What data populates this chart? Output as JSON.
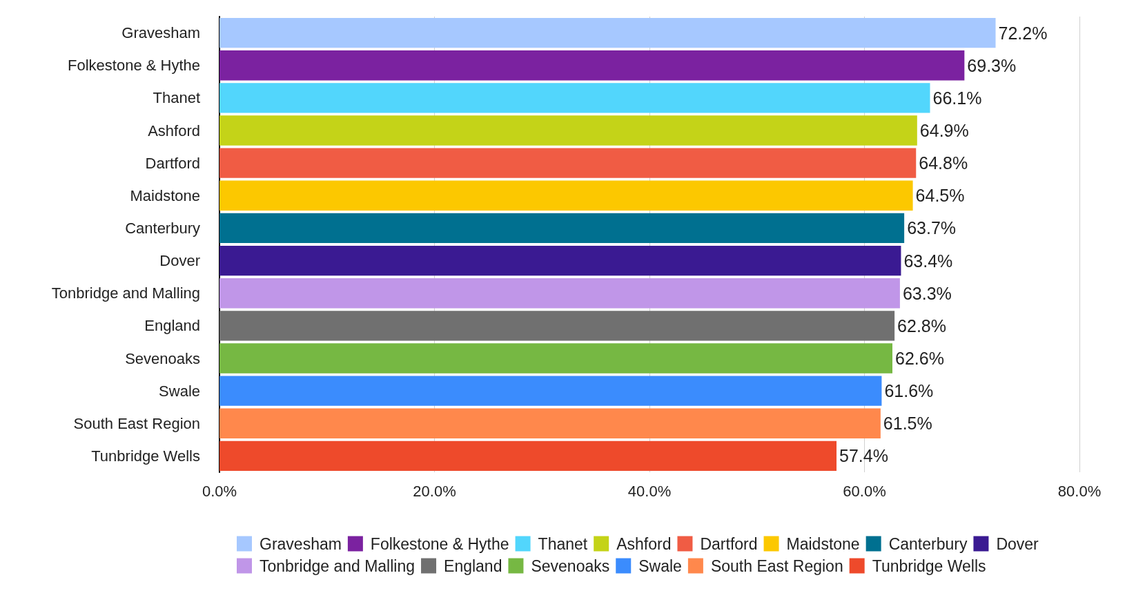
{
  "chart_data": {
    "type": "bar",
    "orientation": "horizontal",
    "categories": [
      "Gravesham",
      "Folkestone & Hythe",
      "Thanet",
      "Ashford",
      "Dartford",
      "Maidstone",
      "Canterbury",
      "Dover",
      "Tonbridge and Malling",
      "England",
      "Sevenoaks",
      "Swale",
      "South East Region",
      "Tunbridge Wells"
    ],
    "series": [
      {
        "name": "Gravesham",
        "color": "#a6c8ff",
        "values": [
          72.2,
          null,
          null,
          null,
          null,
          null,
          null,
          null,
          null,
          null,
          null,
          null,
          null,
          null
        ],
        "value_labels": [
          "72.2%",
          null,
          null,
          null,
          null,
          null,
          null,
          null,
          null,
          null,
          null,
          null,
          null,
          null
        ]
      },
      {
        "name": "Folkestone & Hythe",
        "color": "#7b22a0",
        "values": [
          null,
          69.3,
          null,
          null,
          null,
          null,
          null,
          null,
          null,
          null,
          null,
          null,
          null,
          null
        ],
        "value_labels": [
          null,
          "69.3%",
          null,
          null,
          null,
          null,
          null,
          null,
          null,
          null,
          null,
          null,
          null,
          null
        ]
      },
      {
        "name": "Thanet",
        "color": "#52d6fc",
        "values": [
          null,
          null,
          66.1,
          null,
          null,
          null,
          null,
          null,
          null,
          null,
          null,
          null,
          null,
          null
        ],
        "value_labels": [
          null,
          null,
          "66.1%",
          null,
          null,
          null,
          null,
          null,
          null,
          null,
          null,
          null,
          null,
          null
        ]
      },
      {
        "name": "Ashford",
        "color": "#c4d318",
        "values": [
          null,
          null,
          null,
          64.9,
          null,
          null,
          null,
          null,
          null,
          null,
          null,
          null,
          null,
          null
        ],
        "value_labels": [
          null,
          null,
          null,
          "64.9%",
          null,
          null,
          null,
          null,
          null,
          null,
          null,
          null,
          null,
          null
        ]
      },
      {
        "name": "Dartford",
        "color": "#f05c44",
        "values": [
          null,
          null,
          null,
          null,
          64.8,
          null,
          null,
          null,
          null,
          null,
          null,
          null,
          null,
          null
        ],
        "value_labels": [
          null,
          null,
          null,
          null,
          "64.8%",
          null,
          null,
          null,
          null,
          null,
          null,
          null,
          null,
          null
        ]
      },
      {
        "name": "Maidstone",
        "color": "#fcc800",
        "values": [
          null,
          null,
          null,
          null,
          null,
          64.5,
          null,
          null,
          null,
          null,
          null,
          null,
          null,
          null
        ],
        "value_labels": [
          null,
          null,
          null,
          null,
          null,
          "64.5%",
          null,
          null,
          null,
          null,
          null,
          null,
          null,
          null
        ]
      },
      {
        "name": "Canterbury",
        "color": "#007090",
        "values": [
          null,
          null,
          null,
          null,
          null,
          null,
          63.7,
          null,
          null,
          null,
          null,
          null,
          null,
          null
        ],
        "value_labels": [
          null,
          null,
          null,
          null,
          null,
          null,
          "63.7%",
          null,
          null,
          null,
          null,
          null,
          null,
          null
        ]
      },
      {
        "name": "Dover",
        "color": "#3a1a92",
        "values": [
          null,
          null,
          null,
          null,
          null,
          null,
          null,
          63.4,
          null,
          null,
          null,
          null,
          null,
          null
        ],
        "value_labels": [
          null,
          null,
          null,
          null,
          null,
          null,
          null,
          "63.4%",
          null,
          null,
          null,
          null,
          null,
          null
        ]
      },
      {
        "name": "Tonbridge and Malling",
        "color": "#c096e8",
        "values": [
          null,
          null,
          null,
          null,
          null,
          null,
          null,
          null,
          63.3,
          null,
          null,
          null,
          null,
          null
        ],
        "value_labels": [
          null,
          null,
          null,
          null,
          null,
          null,
          null,
          null,
          "63.3%",
          null,
          null,
          null,
          null,
          null
        ]
      },
      {
        "name": "England",
        "color": "#707070",
        "values": [
          null,
          null,
          null,
          null,
          null,
          null,
          null,
          null,
          null,
          62.8,
          null,
          null,
          null,
          null
        ],
        "value_labels": [
          null,
          null,
          null,
          null,
          null,
          null,
          null,
          null,
          null,
          "62.8%",
          null,
          null,
          null,
          null
        ]
      },
      {
        "name": "Sevenoaks",
        "color": "#76b843",
        "values": [
          null,
          null,
          null,
          null,
          null,
          null,
          null,
          null,
          null,
          null,
          62.6,
          null,
          null,
          null
        ],
        "value_labels": [
          null,
          null,
          null,
          null,
          null,
          null,
          null,
          null,
          null,
          null,
          "62.6%",
          null,
          null,
          null
        ]
      },
      {
        "name": "Swale",
        "color": "#3b8cfd",
        "values": [
          null,
          null,
          null,
          null,
          null,
          null,
          null,
          null,
          null,
          null,
          null,
          61.6,
          null,
          null
        ],
        "value_labels": [
          null,
          null,
          null,
          null,
          null,
          null,
          null,
          null,
          null,
          null,
          null,
          "61.6%",
          null,
          null
        ]
      },
      {
        "name": "South East Region",
        "color": "#ff884c",
        "values": [
          null,
          null,
          null,
          null,
          null,
          null,
          null,
          null,
          null,
          null,
          null,
          null,
          61.5,
          null
        ],
        "value_labels": [
          null,
          null,
          null,
          null,
          null,
          null,
          null,
          null,
          null,
          null,
          null,
          null,
          "61.5%",
          null
        ]
      },
      {
        "name": "Tunbridge Wells",
        "color": "#ee4a2b",
        "values": [
          null,
          null,
          null,
          null,
          null,
          null,
          null,
          null,
          null,
          null,
          null,
          null,
          null,
          57.4
        ],
        "value_labels": [
          null,
          null,
          null,
          null,
          null,
          null,
          null,
          null,
          null,
          null,
          null,
          null,
          null,
          "57.4%"
        ]
      }
    ],
    "xlim": [
      0,
      80
    ],
    "xticks": [
      {
        "value": 0,
        "label": "0.0%"
      },
      {
        "value": 20,
        "label": "20.0%"
      },
      {
        "value": 40,
        "label": "40.0%"
      },
      {
        "value": 60,
        "label": "60.0%"
      },
      {
        "value": 80,
        "label": "80.0%"
      }
    ],
    "grid": "x",
    "legend": "bottom"
  }
}
